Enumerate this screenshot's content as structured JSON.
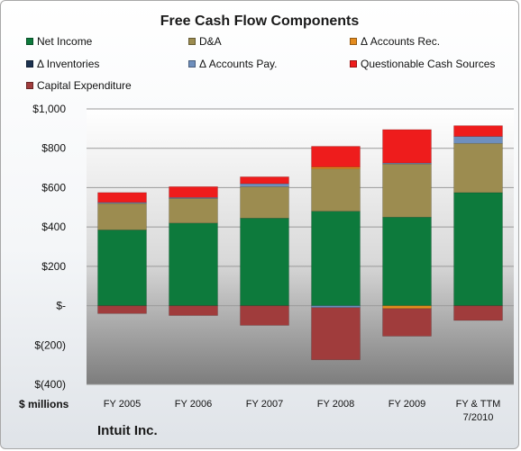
{
  "chart_data": {
    "type": "bar",
    "stacked": true,
    "title": "Free Cash Flow Components",
    "unit_label": "$ millions",
    "company": "Intuit Inc.",
    "categories": [
      "FY 2005",
      "FY 2006",
      "FY 2007",
      "FY 2008",
      "FY 2009",
      "FY & TTM 7/2010"
    ],
    "ylim": [
      -400,
      1000
    ],
    "yticks": [
      {
        "value": 1000,
        "label": "$1,000"
      },
      {
        "value": 800,
        "label": "$800"
      },
      {
        "value": 600,
        "label": "$600"
      },
      {
        "value": 400,
        "label": "$400"
      },
      {
        "value": 200,
        "label": "$200"
      },
      {
        "value": 0,
        "label": "$-"
      },
      {
        "value": -200,
        "label": "$(200)"
      },
      {
        "value": -400,
        "label": "$(400)"
      }
    ],
    "grid": true,
    "legend_position": "top",
    "series": [
      {
        "name": "Net Income",
        "color": "#0d7a3c",
        "values": [
          385,
          420,
          445,
          480,
          450,
          575
        ]
      },
      {
        "name": "D&A",
        "color": "#9c8c50",
        "values": [
          135,
          125,
          160,
          215,
          270,
          250
        ]
      },
      {
        "name": "Δ Accounts Rec.",
        "color": "#e38b1e",
        "values": [
          0,
          0,
          0,
          10,
          -15,
          0
        ]
      },
      {
        "name": "Δ Inventories",
        "color": "#1c3250",
        "values": [
          0,
          0,
          0,
          0,
          0,
          0
        ]
      },
      {
        "name": "Δ Accounts Pay.",
        "color": "#6f8fbd",
        "values": [
          5,
          5,
          15,
          -10,
          5,
          35
        ]
      },
      {
        "name": "Questionable Cash Sources",
        "color": "#ee1c1c",
        "values": [
          50,
          55,
          35,
          105,
          170,
          55
        ]
      },
      {
        "name": "Capital Expenditure",
        "color": "#a03c3c",
        "values": [
          -40,
          -50,
          -100,
          -265,
          -140,
          -75
        ]
      }
    ]
  }
}
